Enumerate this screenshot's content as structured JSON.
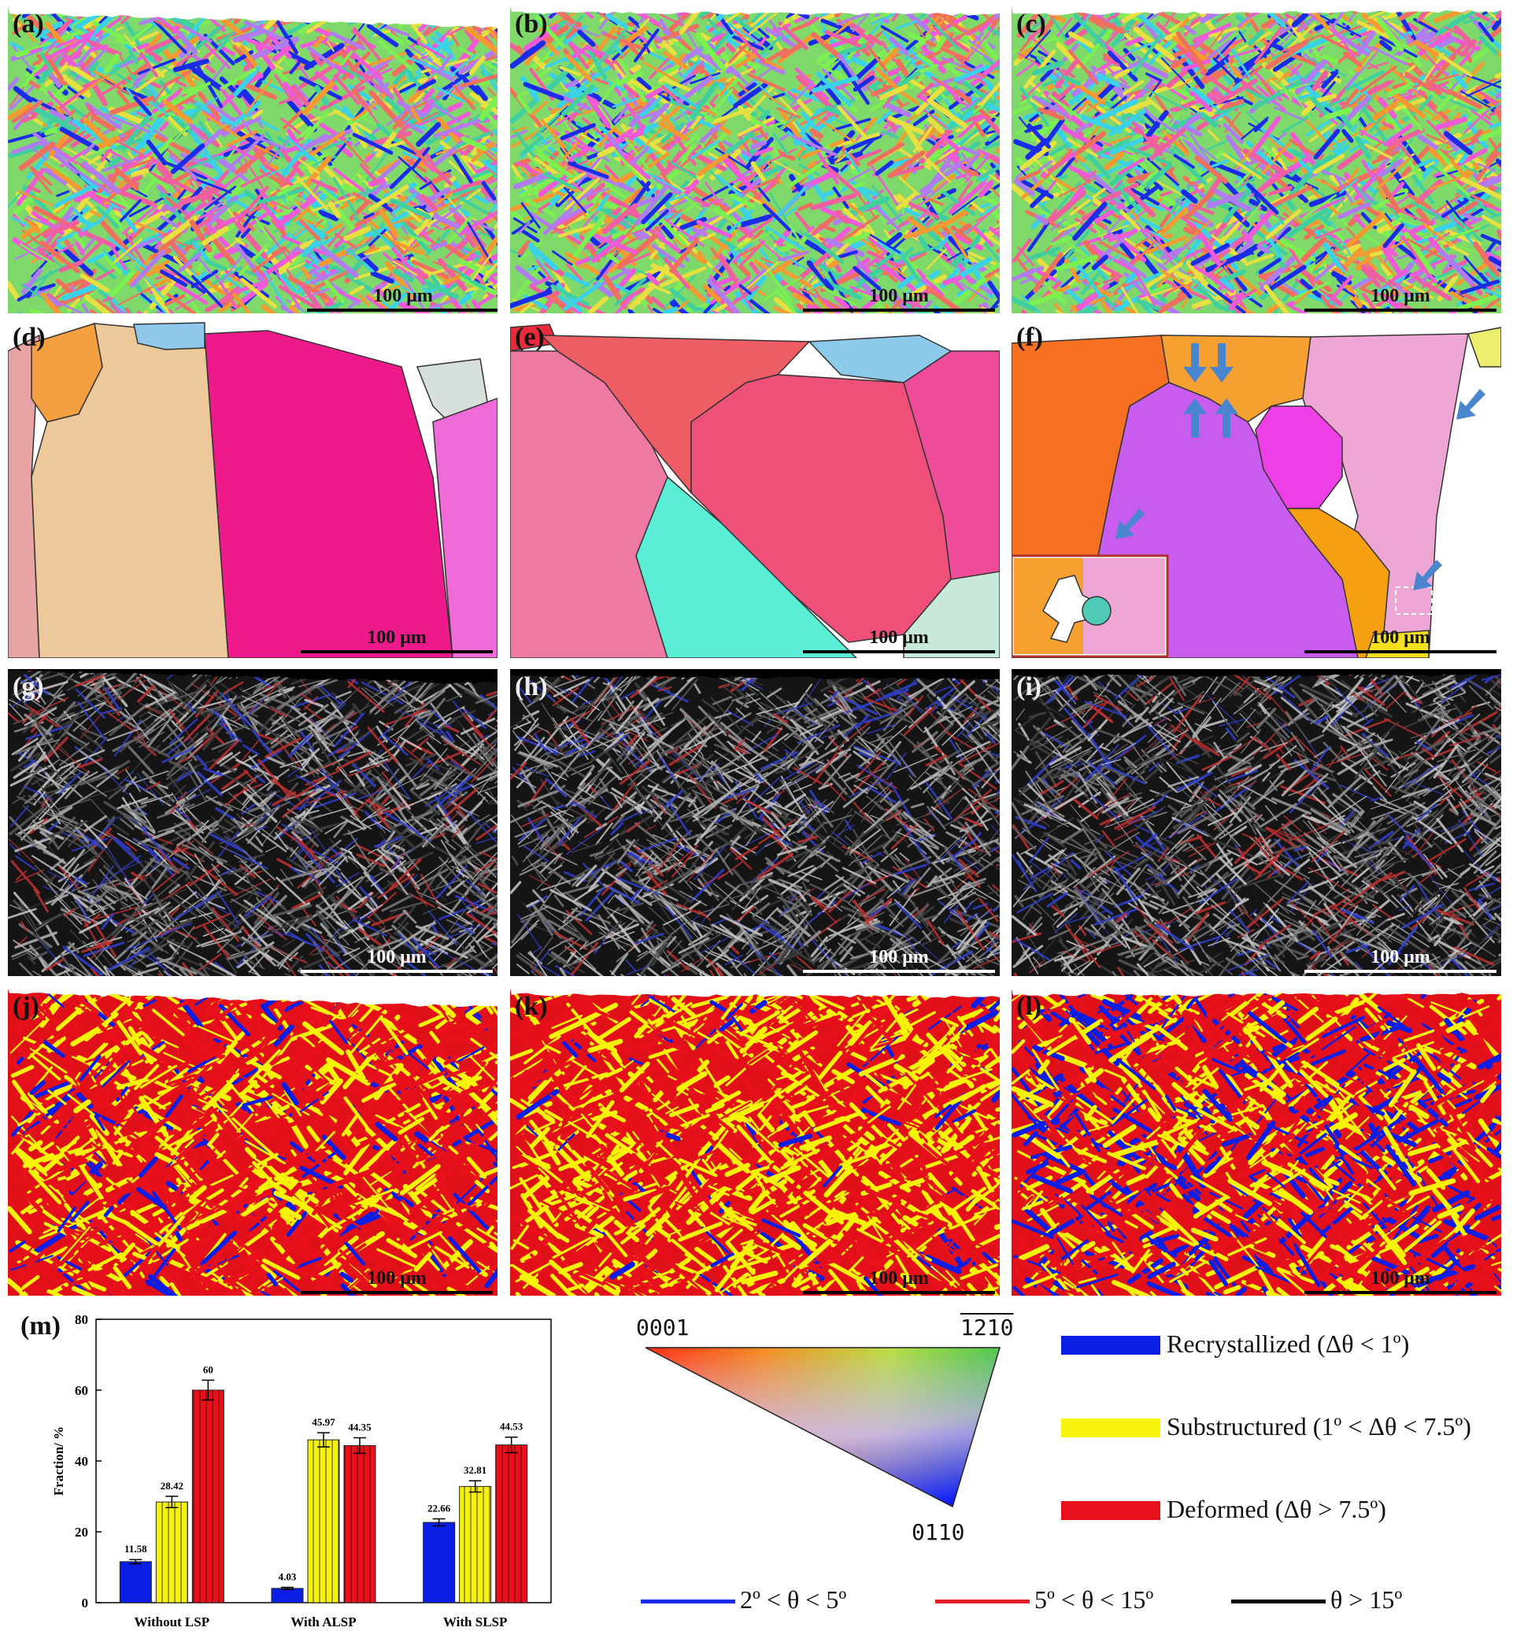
{
  "panels": {
    "a": "(a)",
    "b": "(b)",
    "c": "(c)",
    "d": "(d)",
    "e": "(e)",
    "f": "(f)",
    "g": "(g)",
    "h": "(h)",
    "i": "(i)",
    "j": "(j)",
    "k": "(k)",
    "l": "(l)",
    "m": "(m)"
  },
  "scale_bar_label": "100 μm",
  "ipf_key": {
    "corner_top_left": "0001",
    "corner_top_right": "1210",
    "corner_bottom": "0110"
  },
  "fraction_legend": {
    "recrystallized": "Recrystallized (Δθ < 1º)",
    "substructured": "Substructured (1º < Δθ < 7.5º)",
    "deformed": "Deformed (Δθ > 7.5º)"
  },
  "boundary_legend": {
    "low": "2º < θ < 5º",
    "mid": "5º < θ < 15º",
    "high": "θ > 15º"
  },
  "colors": {
    "recrystallized": "#0a1ee6",
    "substructured": "#f6f20a",
    "deformed": "#e8101a",
    "arrow": "#4a86d0"
  },
  "chart_data": {
    "type": "bar",
    "categories": [
      "Without LSP",
      "With ALSP",
      "With SLSP"
    ],
    "series": [
      {
        "name": "Recrystallized",
        "values": [
          11.58,
          4.03,
          22.66
        ]
      },
      {
        "name": "Substructured",
        "values": [
          28.42,
          45.97,
          32.81
        ]
      },
      {
        "name": "Deformed",
        "values": [
          60,
          44.35,
          44.53
        ]
      }
    ],
    "errors": [
      [
        0.6,
        0.3,
        1.0
      ],
      [
        1.6,
        2.0,
        1.6
      ],
      [
        2.8,
        2.2,
        2.2
      ]
    ],
    "data_labels": [
      [
        "11.58",
        "4.03",
        "22.66"
      ],
      [
        "28.42",
        "45.97",
        "32.81"
      ],
      [
        "60",
        "44.35",
        "44.53"
      ]
    ],
    "ylabel": "Fraction/ %",
    "ylim": [
      0,
      80
    ],
    "yticks": [
      0,
      20,
      40,
      60,
      80
    ]
  }
}
